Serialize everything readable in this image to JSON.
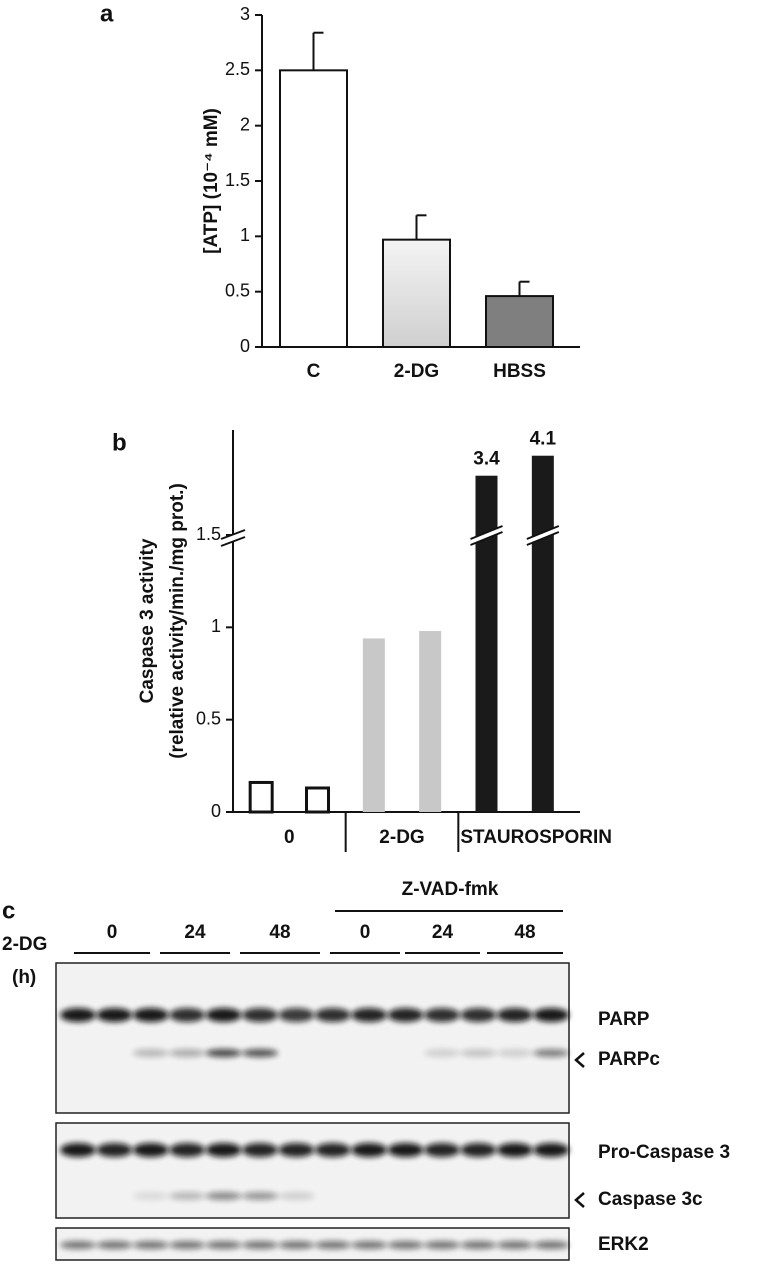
{
  "chart_data": [
    {
      "type": "bar",
      "panel": "a",
      "ylabel": "[ATP] (10⁻⁴ mM)",
      "categories": [
        "C",
        "2-DG",
        "HBSS"
      ],
      "values": [
        2.5,
        0.97,
        0.46
      ],
      "errors": [
        0.34,
        0.22,
        0.13
      ],
      "colors": [
        "#ffffff",
        "#dcdcdc",
        "#7f7f7f"
      ],
      "ylim": [
        0,
        3
      ],
      "yticks": [
        0,
        0.5,
        1,
        1.5,
        2,
        2.5,
        3
      ]
    },
    {
      "type": "bar",
      "panel": "b",
      "ylabel": [
        "Caspase 3 activity",
        "(relative activity/min./mg prot.)"
      ],
      "categories": [
        null,
        null,
        null,
        null,
        null,
        null
      ],
      "groups": [
        "0",
        "2-DG",
        "STAUROSPORIN"
      ],
      "values": [
        0.16,
        0.13,
        0.94,
        0.98,
        3.4,
        4.1
      ],
      "colors": [
        "#ffffff",
        "#ffffff",
        "#c8c8c8",
        "#c8c8c8",
        "#1a1a1a",
        "#1a1a1a"
      ],
      "ylim": [
        0,
        5
      ],
      "axis_break": 1.5,
      "yticks": [
        0,
        0.5,
        1,
        1.5
      ]
    }
  ],
  "blot": {
    "panel": "c",
    "treatment": "2-DG",
    "unit": "(h)",
    "inhibitor": "Z-VAD-fmk",
    "lanes": [
      "0",
      "24",
      "48",
      "0",
      "24",
      "48"
    ],
    "bands": [
      "PARP",
      "PARPc",
      "Pro-Caspase 3",
      "Caspase 3c",
      "ERK2"
    ]
  }
}
